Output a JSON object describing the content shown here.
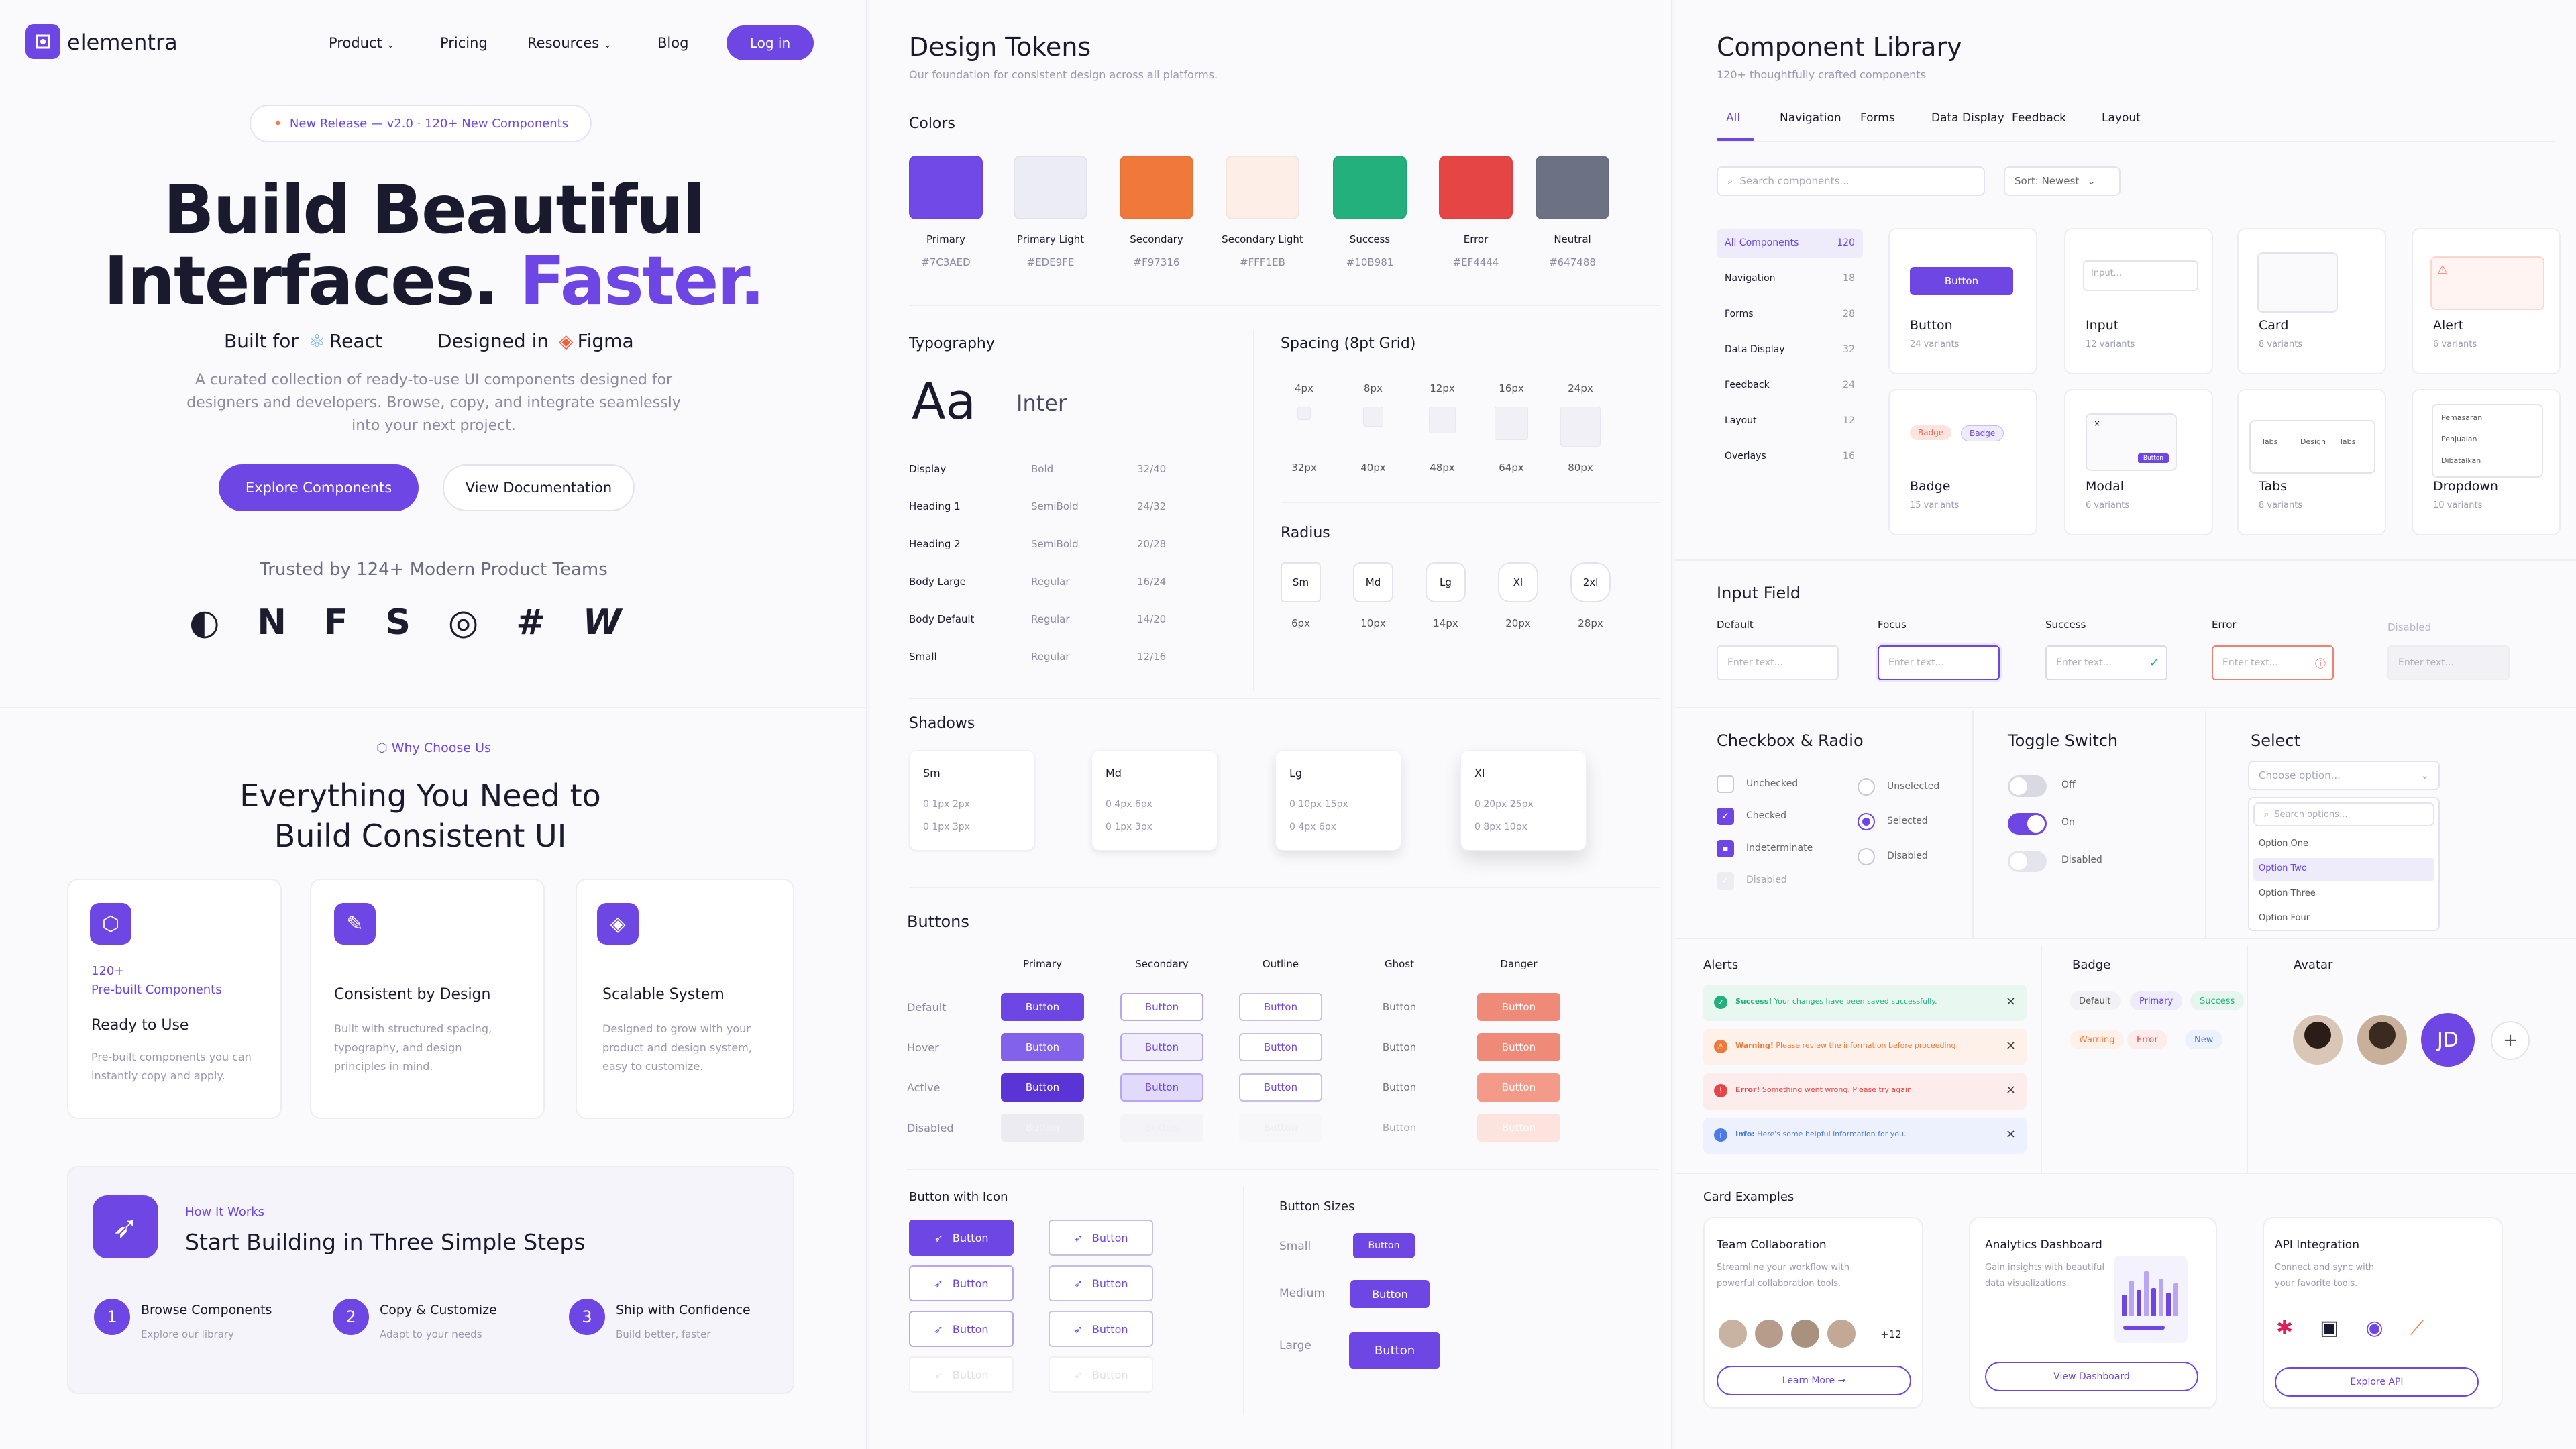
{
  "brand": {
    "name": "elementra"
  },
  "nav": {
    "product": "Product",
    "pricing": "Pricing",
    "resources": "Resources",
    "blog": "Blog",
    "login": "Log in"
  },
  "hero": {
    "badge": "New Release — v2.0 · 120+ New Components",
    "title_line1": "Build Beautiful",
    "title_line2a": "Interfaces.",
    "title_line2b": "Faster.",
    "built_for": "Built for",
    "react": "React",
    "designed_in": "Designed in",
    "figma": "Figma",
    "desc1": "A curated collection of ready-to-use UI components designed for",
    "desc2": "designers and developers. Browse, copy, and integrate seamlessly",
    "desc3": "into your next project.",
    "cta_primary": "Explore Components",
    "cta_secondary": "View Documentation",
    "trusted": "Trusted by 124+ Modern Product Teams"
  },
  "why": {
    "eyebrow": "Why Choose Us",
    "title1": "Everything You Need to",
    "title2": "Build Consistent UI",
    "features": [
      {
        "kicker1": "120+",
        "kicker2": "Pre-built Components",
        "title": "Ready to Use",
        "d1": "Pre-built components you can",
        "d2": "instantly copy and apply.",
        "d3": ""
      },
      {
        "kicker1": "",
        "kicker2": "",
        "title": "Consistent by Design",
        "d1": "Built with structured spacing,",
        "d2": "typography, and design",
        "d3": "principles in mind."
      },
      {
        "kicker1": "",
        "kicker2": "",
        "title": "Scalable System",
        "d1": "Designed to grow with your",
        "d2": "product and design system,",
        "d3": "easy to customize."
      }
    ]
  },
  "how": {
    "eyebrow": "How It Works",
    "title": "Start Building in Three Simple Steps",
    "steps": [
      {
        "n": "1",
        "title": "Browse Components",
        "sub": "Explore our library"
      },
      {
        "n": "2",
        "title": "Copy & Customize",
        "sub": "Adapt to your needs"
      },
      {
        "n": "3",
        "title": "Ship with Confidence",
        "sub": "Build better, faster"
      }
    ]
  },
  "tokens": {
    "title": "Design Tokens",
    "subtitle": "Our foundation for consistent design across all platforms.",
    "colors_label": "Colors",
    "colors": [
      {
        "name": "Primary",
        "hex": "#7C3AED",
        "swatch": "#7049e6"
      },
      {
        "name": "Primary Light",
        "hex": "#EDE9FE",
        "swatch": "#ececf6"
      },
      {
        "name": "Secondary",
        "hex": "#F97316",
        "swatch": "#f0783a"
      },
      {
        "name": "Secondary Light",
        "hex": "#FFF1EB",
        "swatch": "#fdefe8"
      },
      {
        "name": "Success",
        "hex": "#10B981",
        "swatch": "#23b07c"
      },
      {
        "name": "Error",
        "hex": "#EF4444",
        "swatch": "#e64545"
      },
      {
        "name": "Neutral",
        "hex": "#647488",
        "swatch": "#6c7283"
      }
    ],
    "typography_label": "Typography",
    "aa": "Aa",
    "font": "Inter",
    "type_rows": [
      {
        "n": "Display",
        "w": "Bold",
        "s": "32/40"
      },
      {
        "n": "Heading 1",
        "w": "SemiBold",
        "s": "24/32"
      },
      {
        "n": "Heading 2",
        "w": "SemiBold",
        "s": "20/28"
      },
      {
        "n": "Body Large",
        "w": "Regular",
        "s": "16/24"
      },
      {
        "n": "Body Default",
        "w": "Regular",
        "s": "14/20"
      },
      {
        "n": "Small",
        "w": "Regular",
        "s": "12/16"
      }
    ],
    "spacing_label": "Spacing (8pt Grid)",
    "spacing_row1": [
      "4px",
      "8px",
      "12px",
      "16px",
      "24px"
    ],
    "spacing_row2": [
      "32px",
      "40px",
      "48px",
      "64px",
      "80px"
    ],
    "radius_label": "Radius",
    "radius": [
      {
        "n": "Sm",
        "v": "6px"
      },
      {
        "n": "Md",
        "v": "10px"
      },
      {
        "n": "Lg",
        "v": "14px"
      },
      {
        "n": "Xl",
        "v": "20px"
      },
      {
        "n": "2xl",
        "v": "28px"
      }
    ],
    "shadows_label": "Shadows",
    "shadows": [
      {
        "n": "Sm",
        "a": "0 1px 2px",
        "b": "0 1px 3px"
      },
      {
        "n": "Md",
        "a": "0 4px 6px",
        "b": "0 1px 3px"
      },
      {
        "n": "Lg",
        "a": "0 10px 15px",
        "b": "0 4px 6px"
      },
      {
        "n": "Xl",
        "a": "0 20px 25px",
        "b": "0 8px 10px"
      }
    ],
    "buttons_label": "Buttons",
    "btn_cols": [
      "Primary",
      "Secondary",
      "Outline",
      "Ghost",
      "Danger"
    ],
    "btn_rows": [
      "Default",
      "Hover",
      "Active",
      "Disabled"
    ],
    "btn_text": "Button",
    "btn_icon_label": "Button with Icon",
    "btn_sizes_label": "Button Sizes",
    "sizes": [
      "Small",
      "Medium",
      "Large"
    ]
  },
  "library": {
    "title": "Component Library",
    "subtitle": "120+ thoughtfully crafted components",
    "tabs": [
      "All",
      "Navigation",
      "Forms",
      "Data Display",
      "Feedback",
      "Layout"
    ],
    "search_placeholder": "Search components...",
    "sort": "Sort: Newest",
    "categories": [
      {
        "n": "All Components",
        "c": "120"
      },
      {
        "n": "Navigation",
        "c": "18"
      },
      {
        "n": "Forms",
        "c": "28"
      },
      {
        "n": "Data Display",
        "c": "32"
      },
      {
        "n": "Feedback",
        "c": "24"
      },
      {
        "n": "Layout",
        "c": "12"
      },
      {
        "n": "Overlays",
        "c": "16"
      }
    ],
    "tiles": [
      {
        "n": "Button",
        "v": "24 variants"
      },
      {
        "n": "Input",
        "v": "12 variants"
      },
      {
        "n": "Card",
        "v": "8 variants"
      },
      {
        "n": "Alert",
        "v": "6 variants"
      },
      {
        "n": "Badge",
        "v": "15 variants"
      },
      {
        "n": "Modal",
        "v": "6 variants"
      },
      {
        "n": "Tabs",
        "v": "8 variants"
      },
      {
        "n": "Dropdown",
        "v": "10 variants"
      }
    ],
    "tile_button": "Button",
    "tile_input": "Input...",
    "tile_badge1": "Badge",
    "tile_badge2": "Badge",
    "tile_tabs": [
      "Tabs",
      "Design",
      "Tabs"
    ],
    "tile_modal_btn": "Button",
    "tile_dropdown": [
      "Pemasaran",
      "Penjualan",
      "Dibatalkan"
    ]
  },
  "input_field": {
    "title": "Input Field",
    "states": [
      "Default",
      "Focus",
      "Success",
      "Error",
      "Disabled"
    ],
    "placeholder": "Enter text..."
  },
  "checkbox": {
    "title": "Checkbox & Radio",
    "cb": [
      "Unchecked",
      "Checked",
      "Indeterminate",
      "Disabled"
    ],
    "rb": [
      "Unselected",
      "Selected",
      "Disabled"
    ]
  },
  "toggle": {
    "title": "Toggle Switch",
    "labels": [
      "Off",
      "On",
      "Disabled"
    ]
  },
  "select": {
    "title": "Select",
    "placeholder": "Choose option...",
    "search": "Search options...",
    "options": [
      "Option One",
      "Option Two",
      "Option Three",
      "Option Four"
    ]
  },
  "alerts": {
    "title": "Alerts",
    "items": [
      {
        "strong": "Success!",
        "text": " Your changes have been saved successfully."
      },
      {
        "strong": "Warning!",
        "text": " Please review the information before proceeding."
      },
      {
        "strong": "Error!",
        "text": " Something went wrong. Please try again."
      },
      {
        "strong": "Info:",
        "text": " Here's some helpful information for you."
      }
    ]
  },
  "badge": {
    "title": "Badge",
    "row1": [
      "Default",
      "Primary",
      "Success"
    ],
    "row2": [
      "Warning",
      "Error",
      "New"
    ]
  },
  "avatar": {
    "title": "Avatar",
    "initials": "JD",
    "add": "+"
  },
  "cards": {
    "title": "Card Examples",
    "team": {
      "title": "Team Collaboration",
      "d1": "Streamline your workflow with",
      "d2": "powerful collaboration tools.",
      "more": "+12",
      "cta": "Learn More →"
    },
    "analytics": {
      "title": "Analytics Dashboard",
      "d1": "Gain insights with beautiful",
      "d2": "data visualizations.",
      "cta": "View Dashboard",
      "bars": [
        0.45,
        0.75,
        0.55,
        0.95,
        0.6,
        0.8,
        0.5,
        0.7
      ]
    },
    "api": {
      "title": "API Integration",
      "d1": "Connect and sync with",
      "d2": "your favorite tools.",
      "cta": "Explore API"
    }
  }
}
